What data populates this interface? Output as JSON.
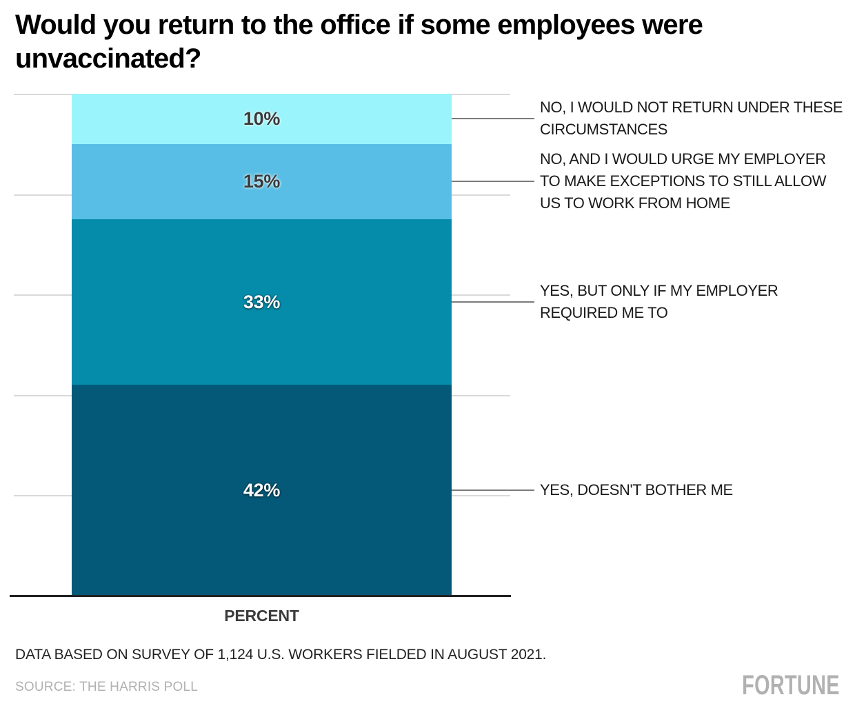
{
  "title": "Would you return to the office if some employees were unvaccinated?",
  "chart_data": {
    "type": "bar",
    "subtype": "single-stacked-vertical-bar",
    "title": "Would you return to the office if some employees were unvaccinated?",
    "xlabel": "PERCENT",
    "ylabel": "",
    "value_axis": {
      "min": 0,
      "max": 100,
      "gridline_step_percent": 20,
      "tick_labels_visible": false,
      "grid_on": true
    },
    "legend_position": "right-callout-labels",
    "segments": [
      {
        "value": 10,
        "value_label": "10%",
        "color": "#9af4fb",
        "text_style": "dark",
        "label": "NO, I WOULD NOT RETURN UNDER THESE CIRCUMSTANCES",
        "label_lines": [
          "NO, I WOULD NOT RETURN UNDER THESE",
          "CIRCUMSTANCES"
        ]
      },
      {
        "value": 15,
        "value_label": "15%",
        "color": "#58bee5",
        "text_style": "dark",
        "label": "NO, AND I WOULD URGE MY EMPLOYER TO MAKE EXCEPTIONS TO STILL ALLOW US TO WORK FROM HOME",
        "label_lines": [
          "NO, AND I WOULD URGE MY EMPLOYER",
          "TO MAKE EXCEPTIONS TO STILL ALLOW",
          "US TO WORK FROM HOME"
        ]
      },
      {
        "value": 33,
        "value_label": "33%",
        "color": "#048caa",
        "text_style": "light",
        "label": "YES, BUT ONLY IF MY EMPLOYER REQUIRED ME TO",
        "label_lines": [
          "YES, BUT ONLY IF MY EMPLOYER",
          "REQUIRED ME TO"
        ]
      },
      {
        "value": 42,
        "value_label": "42%",
        "color": "#045978",
        "text_style": "light",
        "label": "YES, DOESN'T BOTHER ME",
        "label_lines": [
          "YES, DOESN'T BOTHER ME"
        ]
      }
    ]
  },
  "footer": {
    "note": "DATA BASED ON SURVEY OF 1,124 U.S. WORKERS FIELDED IN AUGUST 2021.",
    "source": "SOURCE: THE HARRIS POLL",
    "brand": "FORTUNE"
  },
  "colors": {
    "background": "#ffffff",
    "title_text": "#000000",
    "gridline": "#d9d9d9",
    "axis_line": "#222222",
    "callout_line": "#7b7b7b",
    "label_text": "#1a1a1a",
    "value_text_dark": "#3a3a3a",
    "value_text_light": "#ffffff",
    "muted_gray": "#b1b1b1"
  }
}
